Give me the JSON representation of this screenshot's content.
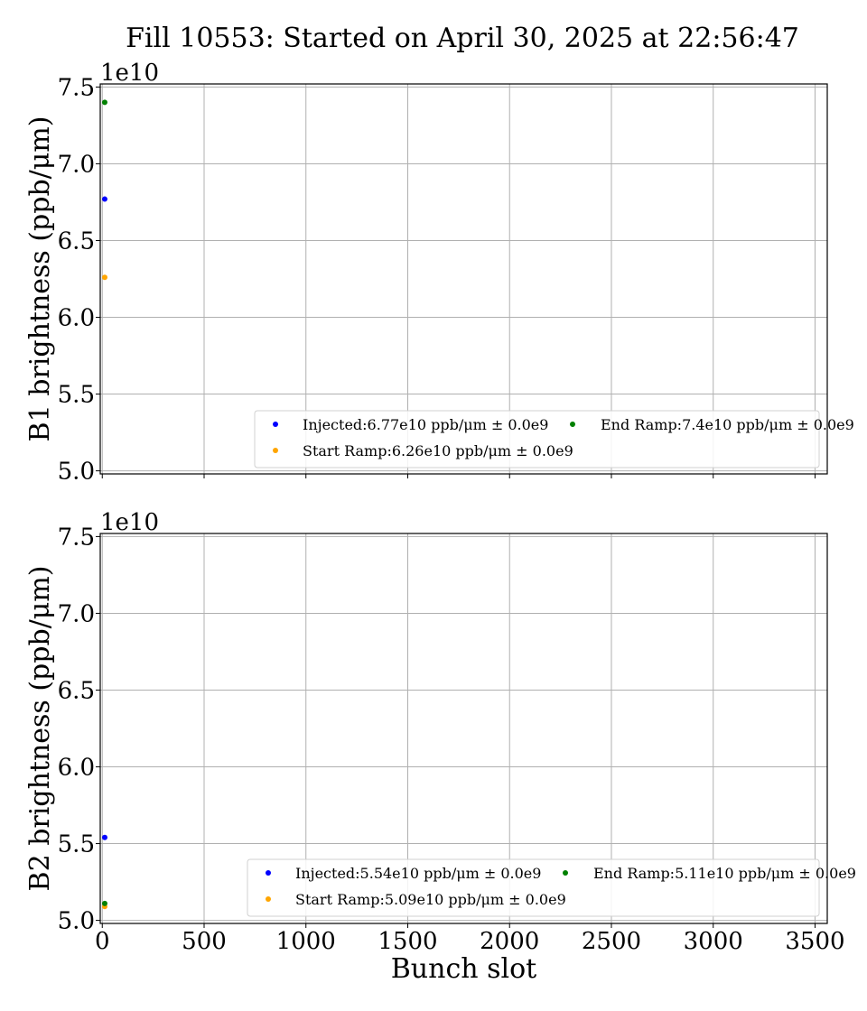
{
  "title": "Fill 10553: Started on April 30, 2025 at 22:56:47",
  "chart_data": [
    {
      "type": "scatter",
      "ylabel": "B1 brightness (ppb/μm)",
      "xlabel": "",
      "offset_text": "1e10",
      "xlim": [
        -10,
        3560
      ],
      "ylim": [
        49800000000.0,
        75200000000.0
      ],
      "xticks": [
        0,
        500,
        1000,
        1500,
        2000,
        2500,
        3000,
        3500
      ],
      "xtick_labels": [],
      "yticks": [
        50000000000.0,
        55000000000.0,
        60000000000.0,
        65000000000.0,
        70000000000.0,
        75000000000.0
      ],
      "ytick_labels": [
        "5.0",
        "5.5",
        "6.0",
        "6.5",
        "7.0",
        "7.5"
      ],
      "grid": true,
      "legend_placement": "lower-right",
      "series": [
        {
          "name": "Injected:6.77e10 ppb/μm ± 0.0e9",
          "color": "#0000ff",
          "x": [
            1
          ],
          "y": [
            67700000000.0
          ]
        },
        {
          "name": "Start Ramp:6.26e10 ppb/μm ± 0.0e9",
          "color": "#ffa500",
          "x": [
            1
          ],
          "y": [
            62600000000.0
          ]
        },
        {
          "name": "End Ramp:7.4e10 ppb/μm ± 0.0e9",
          "color": "#008000",
          "x": [
            1
          ],
          "y": [
            74000000000.0
          ]
        }
      ]
    },
    {
      "type": "scatter",
      "ylabel": "B2 brightness (ppb/μm)",
      "xlabel": "Bunch slot",
      "offset_text": "1e10",
      "xlim": [
        -10,
        3560
      ],
      "ylim": [
        49800000000.0,
        75200000000.0
      ],
      "xticks": [
        0,
        500,
        1000,
        1500,
        2000,
        2500,
        3000,
        3500
      ],
      "xtick_labels": [
        "0",
        "500",
        "1000",
        "1500",
        "2000",
        "2500",
        "3000",
        "3500"
      ],
      "yticks": [
        50000000000.0,
        55000000000.0,
        60000000000.0,
        65000000000.0,
        70000000000.0,
        75000000000.0
      ],
      "ytick_labels": [
        "5.0",
        "5.5",
        "6.0",
        "6.5",
        "7.0",
        "7.5"
      ],
      "grid": true,
      "legend_placement": "lower-right",
      "series": [
        {
          "name": "Injected:5.54e10 ppb/μm ± 0.0e9",
          "color": "#0000ff",
          "x": [
            1
          ],
          "y": [
            55400000000.0
          ]
        },
        {
          "name": "Start Ramp:5.09e10 ppb/μm ± 0.0e9",
          "color": "#ffa500",
          "x": [
            1
          ],
          "y": [
            50900000000.0
          ]
        },
        {
          "name": "End Ramp:5.11e10 ppb/μm ± 0.0e9",
          "color": "#008000",
          "x": [
            1
          ],
          "y": [
            51100000000.0
          ]
        }
      ]
    }
  ]
}
